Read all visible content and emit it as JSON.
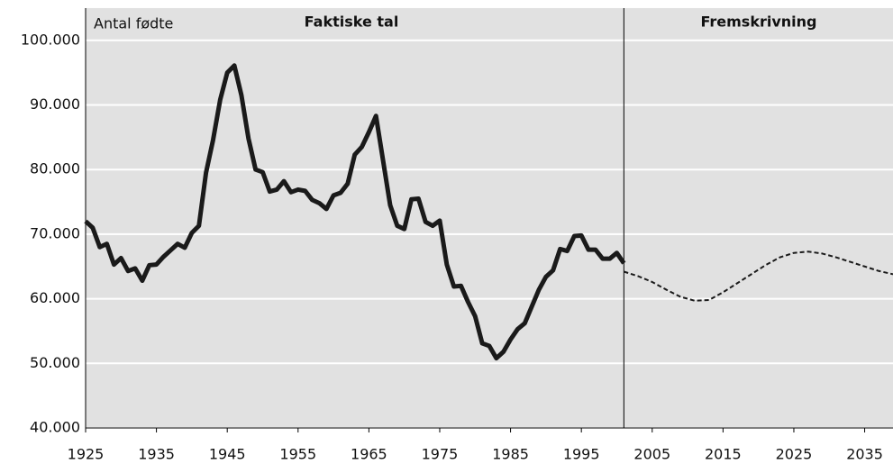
{
  "chart_data": {
    "type": "line",
    "annotations": {
      "ylabel": "Antal fødte",
      "left": "Faktiske tal",
      "right": "Fremskrivning"
    },
    "divider": 2001,
    "xlim": [
      1925,
      2039
    ],
    "ylim": [
      40000,
      105000
    ],
    "xticks": [
      1925,
      1935,
      1945,
      1955,
      1965,
      1975,
      1985,
      1995,
      2005,
      2015,
      2025,
      2035
    ],
    "yticks": [
      {
        "value": 40000,
        "label": "40.000"
      },
      {
        "value": 50000,
        "label": "50.000"
      },
      {
        "value": 60000,
        "label": "60.000"
      },
      {
        "value": 70000,
        "label": "70.000"
      },
      {
        "value": 80000,
        "label": "80.000"
      },
      {
        "value": 90000,
        "label": "90.000"
      },
      {
        "value": 100000,
        "label": "100.000"
      }
    ],
    "grid": true,
    "background": "#e1e1e1",
    "series": [
      {
        "color": "#1a1a1a",
        "dash": false,
        "x": [
          1925,
          1926,
          1927,
          1928,
          1929,
          1930,
          1931,
          1932,
          1933,
          1934,
          1935,
          1936,
          1937,
          1938,
          1939,
          1940,
          1941,
          1942,
          1943,
          1944,
          1945,
          1946,
          1947,
          1948,
          1949,
          1950,
          1951,
          1952,
          1953,
          1954,
          1955,
          1956,
          1957,
          1958,
          1959,
          1960,
          1961,
          1962,
          1963,
          1964,
          1965,
          1966,
          1967,
          1968,
          1969,
          1970,
          1971,
          1972,
          1973,
          1974,
          1975,
          1976,
          1977,
          1978,
          1979,
          1980,
          1981,
          1982,
          1983,
          1984,
          1985,
          1986,
          1987,
          1988,
          1989,
          1990,
          1991,
          1992,
          1993,
          1994,
          1995,
          1996,
          1997,
          1998,
          1999,
          2000,
          2001
        ],
        "values": [
          72000,
          71000,
          68000,
          68500,
          65300,
          66300,
          64300,
          64700,
          62800,
          65200,
          65300,
          66500,
          67500,
          68500,
          67900,
          70200,
          71300,
          79500,
          84600,
          90800,
          95000,
          96100,
          91500,
          84800,
          80000,
          79600,
          76600,
          76900,
          78200,
          76500,
          76900,
          76700,
          75300,
          74800,
          73900,
          76000,
          76400,
          77800,
          82300,
          83500,
          85800,
          88300,
          81400,
          74500,
          71300,
          70800,
          75400,
          75500,
          71900,
          71300,
          72100,
          65300,
          61900,
          62000,
          59500,
          57300,
          53100,
          52700,
          50800,
          51800,
          53700,
          55300,
          56200,
          58800,
          61400,
          63400,
          64400,
          67700,
          67400,
          69700,
          69800,
          67600,
          67600,
          66200,
          66200,
          67100,
          65500
        ]
      },
      {
        "color": "#1a1a1a",
        "dash": true,
        "x": [
          2001,
          2003,
          2005,
          2007,
          2009,
          2011,
          2013,
          2015,
          2017,
          2019,
          2021,
          2023,
          2025,
          2027,
          2029,
          2031,
          2033,
          2035,
          2037,
          2039
        ],
        "values": [
          64200,
          63500,
          62600,
          61400,
          60300,
          59700,
          59800,
          61000,
          62400,
          63800,
          65200,
          66400,
          67100,
          67300,
          67000,
          66400,
          65700,
          65000,
          64300,
          63800
        ]
      }
    ]
  }
}
